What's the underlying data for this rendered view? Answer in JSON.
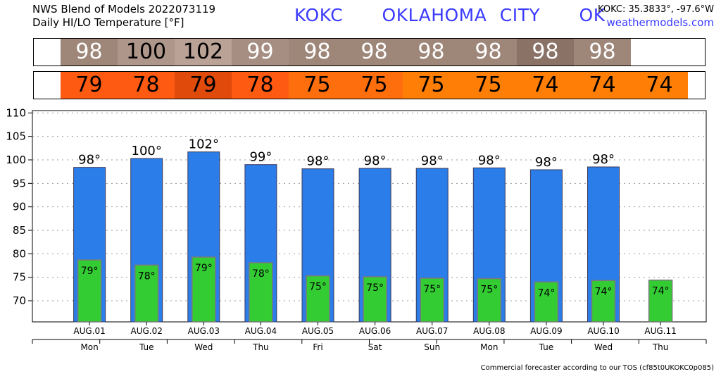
{
  "header": {
    "title_line1": "NWS Blend of Models 2022073119",
    "title_line2": "Daily HI/LO Temperature [°F]",
    "station": "KOKC   OKLAHOMA CITY   OK",
    "coords": "KOKC: 35.3833°, -97.6°W",
    "site": "weathermodels.com"
  },
  "hi_strip": {
    "values": [
      "98",
      "100",
      "102",
      "99",
      "98",
      "98",
      "98",
      "98",
      "98",
      "98"
    ],
    "colors": [
      "#9e8679",
      "#af968a",
      "#bba296",
      "#a68e82",
      "#9e8679",
      "#9e8679",
      "#9e8679",
      "#9e8679",
      "#8a7266",
      "#9e8679"
    ],
    "text_dark": [
      false,
      true,
      true,
      false,
      false,
      false,
      false,
      false,
      false,
      false
    ]
  },
  "lo_strip": {
    "values": [
      "79",
      "78",
      "79",
      "78",
      "75",
      "75",
      "75",
      "75",
      "74",
      "74",
      "74"
    ],
    "colors": [
      "#ff5a12",
      "#ff5a12",
      "#e04a0a",
      "#ff5a12",
      "#ff6e0c",
      "#ff6e0c",
      "#ff7e06",
      "#ff7e06",
      "#ff7e06",
      "#ff7e06",
      "#ff7e06"
    ]
  },
  "chart_data": {
    "type": "bar",
    "categories": [
      "AUG.01",
      "AUG.02",
      "AUG.03",
      "AUG.04",
      "AUG.05",
      "AUG.06",
      "AUG.07",
      "AUG.08",
      "AUG.09",
      "AUG.10",
      "AUG.11"
    ],
    "weekdays": [
      "Mon",
      "Tue",
      "Wed",
      "Thu",
      "Fri",
      "Sat",
      "Sun",
      "Mon",
      "Tue",
      "Wed",
      "Thu"
    ],
    "series": [
      {
        "values": [
          98.4,
          100.3,
          101.7,
          99.0,
          98.1,
          98.2,
          98.2,
          98.3,
          97.9,
          98.5,
          null
        ],
        "labels": [
          "98°",
          "100°",
          "102°",
          "99°",
          "98°",
          "98°",
          "98°",
          "98°",
          "98°",
          "98°",
          ""
        ],
        "color": "#2b7de9"
      },
      {
        "values": [
          78.7,
          77.6,
          79.3,
          78.1,
          75.3,
          75.1,
          74.8,
          74.7,
          74.0,
          74.3,
          74.4
        ],
        "labels": [
          "79°",
          "78°",
          "79°",
          "78°",
          "75°",
          "75°",
          "75°",
          "75°",
          "74°",
          "74°",
          "74°"
        ],
        "color": "#33cc33"
      }
    ],
    "yticks": [
      70,
      75,
      80,
      85,
      90,
      95,
      100,
      105,
      110
    ],
    "ylim": [
      65.5,
      110.5
    ],
    "grid": true,
    "title": "",
    "xlabel": "",
    "ylabel": ""
  },
  "footer": {
    "text": "Commercial forecaster according to our TOS (cf85t0UKOKC0p085)"
  }
}
